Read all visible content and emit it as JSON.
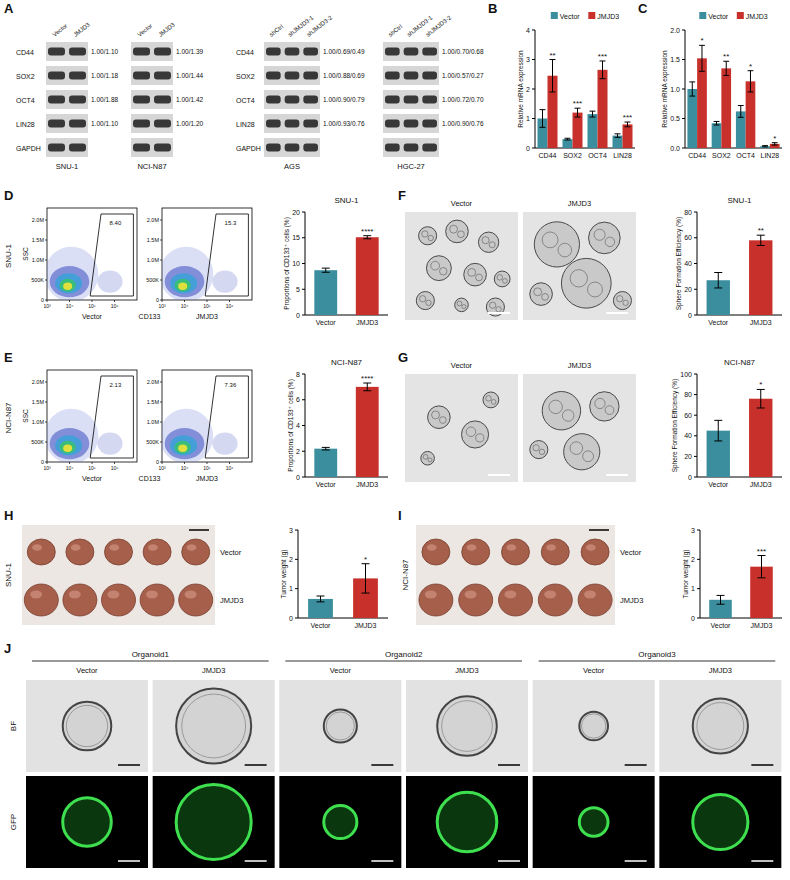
{
  "chart_data": [
    {
      "type": "bar",
      "panel": "B",
      "y_label": "Relative mRNA expression",
      "categories": [
        "CD44",
        "SOX2",
        "OCT4",
        "LIN28"
      ],
      "series": [
        {
          "name": "Vector",
          "color": "#3a8e9e",
          "values": [
            1.0,
            0.3,
            1.15,
            0.42
          ],
          "errors": [
            0.3,
            0.03,
            0.1,
            0.06
          ]
        },
        {
          "name": "JMJD3",
          "color": "#c8302b",
          "values": [
            2.45,
            1.2,
            2.65,
            0.8
          ],
          "errors": [
            0.55,
            0.15,
            0.3,
            0.08
          ],
          "significance": [
            "**",
            "***",
            "***",
            "***"
          ]
        }
      ],
      "ylim": [
        0,
        4
      ],
      "yticks": [
        0,
        1,
        2,
        3,
        4
      ],
      "legend": "top"
    },
    {
      "type": "bar",
      "panel": "C",
      "y_label": "Relative mRNA expression",
      "categories": [
        "CD44",
        "SOX2",
        "OCT4",
        "LIN28"
      ],
      "series": [
        {
          "name": "Vector",
          "color": "#3a8e9e",
          "values": [
            1.0,
            0.42,
            0.62,
            0.03
          ],
          "errors": [
            0.12,
            0.03,
            0.1,
            0.01
          ]
        },
        {
          "name": "JMJD3",
          "color": "#c8302b",
          "values": [
            1.52,
            1.35,
            1.13,
            0.07
          ],
          "errors": [
            0.22,
            0.12,
            0.18,
            0.02
          ],
          "significance": [
            "*",
            "**",
            "*",
            "*"
          ]
        }
      ],
      "ylim": [
        0,
        2
      ],
      "yticks": [
        {
          "value": 0,
          "label": "0.0"
        },
        0.5,
        {
          "value": 1,
          "label": "1.0"
        },
        1.5,
        {
          "value": 2,
          "label": "2.0"
        }
      ],
      "legend": "top"
    },
    {
      "type": "bar",
      "title": "SNU-1",
      "y_label": "Proportions of CD133⁺ cells (%)",
      "categories": [
        "Vector",
        "JMJD3"
      ],
      "values": [
        8.7,
        15.1
      ],
      "errors": [
        0.4,
        0.3
      ],
      "significance": [
        null,
        "****"
      ],
      "colors": [
        "#3a8e9e",
        "#c8302b"
      ],
      "ylim": [
        0,
        20
      ],
      "yticks": [
        0,
        5,
        10,
        15,
        20
      ]
    },
    {
      "type": "bar",
      "title": "NCI-N87",
      "y_label": "Proportions of CD133⁺ cells (%)",
      "categories": [
        "Vector",
        "JMJD3"
      ],
      "values": [
        2.2,
        7.0
      ],
      "errors": [
        0.1,
        0.3
      ],
      "significance": [
        null,
        "****"
      ],
      "colors": [
        "#3a8e9e",
        "#c8302b"
      ],
      "ylim": [
        0,
        8
      ],
      "yticks": [
        0,
        2,
        4,
        6,
        8
      ]
    },
    {
      "type": "bar",
      "title": "SNU-1",
      "y_label": "Sphere Formation Efficiency (%)",
      "categories": [
        "Vector",
        "JMJD3"
      ],
      "values": [
        27,
        58
      ],
      "errors": [
        6,
        4
      ],
      "significance": [
        null,
        "**"
      ],
      "colors": [
        "#3a8e9e",
        "#c8302b"
      ],
      "ylim": [
        0,
        80
      ],
      "yticks": [
        0,
        20,
        40,
        60,
        80
      ]
    },
    {
      "type": "bar",
      "title": "NCI-N87",
      "y_label": "Sphere Formation Efficiency (%)",
      "categories": [
        "Vector",
        "JMJD3"
      ],
      "values": [
        45,
        76
      ],
      "errors": [
        10,
        9
      ],
      "significance": [
        null,
        "*"
      ],
      "colors": [
        "#3a8e9e",
        "#c8302b"
      ],
      "ylim": [
        0,
        100
      ],
      "yticks": [
        0,
        20,
        40,
        60,
        80,
        100
      ]
    },
    {
      "type": "bar",
      "y_label": "Tumor weight (g)",
      "categories": [
        "Vector",
        "JMJD3"
      ],
      "values": [
        0.65,
        1.35
      ],
      "errors": [
        0.1,
        0.5
      ],
      "significance": [
        null,
        "*"
      ],
      "colors": [
        "#3a8e9e",
        "#c8302b"
      ],
      "ylim": [
        0,
        3
      ],
      "yticks": [
        0,
        1,
        2,
        3
      ]
    },
    {
      "type": "bar",
      "y_label": "Tumor weight (g)",
      "categories": [
        "Vector",
        "JMJD3"
      ],
      "values": [
        0.62,
        1.75
      ],
      "errors": [
        0.15,
        0.38
      ],
      "significance": [
        null,
        "***"
      ],
      "colors": [
        "#3a8e9e",
        "#c8302b"
      ],
      "ylim": [
        0,
        3
      ],
      "yticks": [
        0,
        1,
        2,
        3
      ]
    }
  ],
  "blot_panel": {
    "panel": "A",
    "blots": [
      {
        "cell_line": "SNU-1",
        "lanes": [
          "Vector",
          "JMJD3"
        ],
        "proteins": [
          "CD44",
          "SOX2",
          "OCT4",
          "LIN28",
          "GAPDH"
        ],
        "ratios": [
          "1.00/1.10",
          "1.00/1.18",
          "1.00/1.88",
          "1.00/1.10",
          null
        ]
      },
      {
        "cell_line": "NCI-N87",
        "lanes": [
          "Vector",
          "JMJD3"
        ],
        "ratios": [
          "1.00/1.39",
          "1.00/1.44",
          "1.00/1.42",
          "1.00/1.20",
          null
        ]
      },
      {
        "cell_line": "AGS",
        "lanes": [
          "shCtrl",
          "shJMJD3-1",
          "shJMJD3-2"
        ],
        "proteins": [
          "CD44",
          "SOX2",
          "OCT4",
          "LIN28",
          "GAPDH"
        ],
        "ratios": [
          "1.00/0.69/0.49",
          "1.00/0.88/0.69",
          "1.00/0.90/0.79",
          "1.00/0.93/0.76",
          null
        ]
      },
      {
        "cell_line": "HGC-27",
        "lanes": [
          "shCtrl",
          "shJMJD3-1",
          "shJMJD3-2"
        ],
        "ratios": [
          "1.00/0.70/0.68",
          "1.00/0.57/0.27",
          "1.00/0.72/0.70",
          "1.00/0.90/0.76",
          null
        ]
      }
    ]
  },
  "flow_panels": [
    {
      "panel": "D",
      "cell_line": "SNU-1",
      "y_label": "SSC",
      "x_label": "CD133",
      "log": "x",
      "xlim": [
        1000,
        10000000
      ],
      "xticks": [
        {
          "value": 1000,
          "label": "10³"
        },
        {
          "value": 10000,
          "label": "10⁴"
        },
        {
          "value": 100000,
          "label": "10⁵"
        },
        {
          "value": 1000000,
          "label": "10⁶"
        }
      ],
      "ylim": [
        0,
        2300000
      ],
      "yticks": [
        0,
        {
          "value": 500000,
          "label": "500K"
        },
        {
          "value": 1000000,
          "label": "1.0M"
        },
        {
          "value": 1500000,
          "label": "1.5M"
        },
        {
          "value": 2000000,
          "label": "2.0M"
        }
      ],
      "plots": [
        {
          "label": "Vector",
          "gate": "8.40"
        },
        {
          "label": "JMJD3",
          "gate": "15.3"
        }
      ]
    },
    {
      "panel": "E",
      "cell_line": "NCI-N87",
      "y_label": "SSC",
      "x_label": "CD133",
      "log": "x",
      "xlim": [
        1000,
        10000000
      ],
      "xticks": [
        {
          "value": 1000,
          "label": "10³"
        },
        {
          "value": 10000,
          "label": "10⁴"
        },
        {
          "value": 100000,
          "label": "10⁵"
        },
        {
          "value": 1000000,
          "label": "10⁶"
        }
      ],
      "ylim": [
        0,
        2300000
      ],
      "yticks": [
        0,
        {
          "value": 500000,
          "label": "500K"
        },
        {
          "value": 1000000,
          "label": "1.0M"
        },
        {
          "value": 1500000,
          "label": "1.5M"
        },
        {
          "value": 2000000,
          "label": "2.0M"
        }
      ],
      "plots": [
        {
          "label": "Vector",
          "gate": "2.13"
        },
        {
          "label": "JMJD3",
          "gate": "7.36"
        }
      ]
    }
  ],
  "image_panels": [
    {
      "panel": "F",
      "labels": [
        "Vector",
        "JMJD3"
      ]
    },
    {
      "panel": "G",
      "labels": [
        "Vector",
        "JMJD3"
      ]
    }
  ],
  "tumor_panels": [
    {
      "panel": "H",
      "cell_line": "SNU-1",
      "rows": [
        "Vector",
        "JMJD3"
      ]
    },
    {
      "panel": "I",
      "cell_line": "NCI-N87",
      "rows": [
        "Vector",
        "JMJD3"
      ]
    }
  ],
  "organoid_panel": {
    "panel": "J",
    "rows": [
      "BF",
      "GFP"
    ],
    "groups": [
      {
        "name": "Organoid1",
        "columns": [
          "Vector",
          "JMJD3"
        ]
      },
      {
        "name": "Organoid2",
        "columns": [
          "Vector",
          "JMJD3"
        ]
      },
      {
        "name": "Organoid3",
        "columns": [
          "Vector",
          "JMJD3"
        ]
      }
    ]
  }
}
